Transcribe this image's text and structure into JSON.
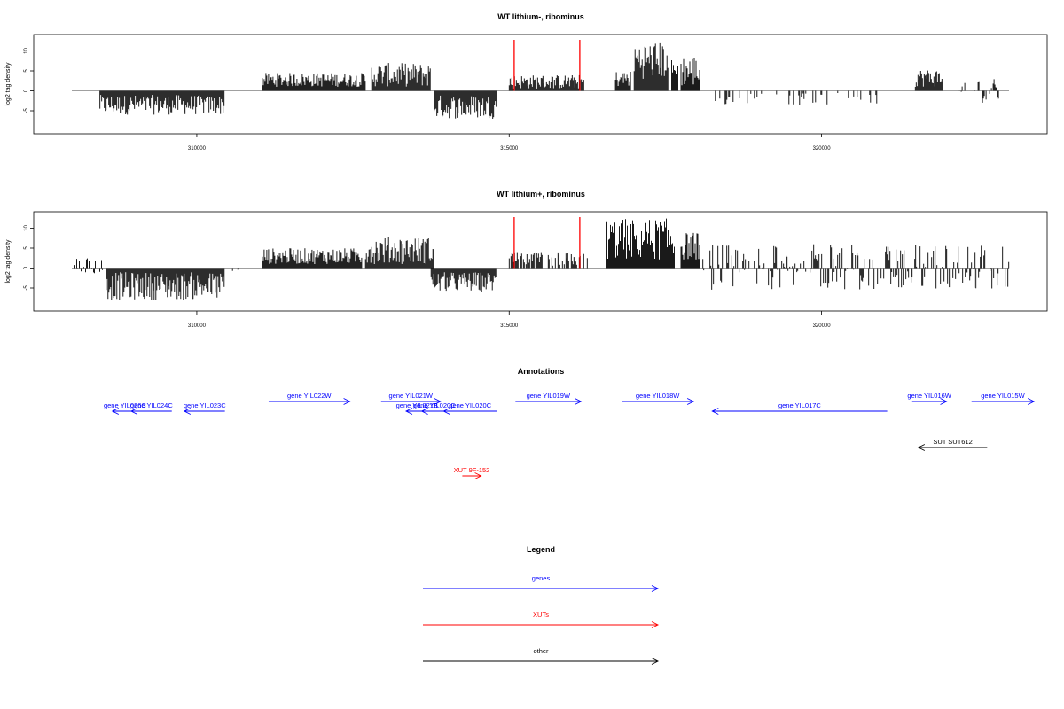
{
  "chart_data": {
    "type": "bar",
    "genomic_range": [
      308000,
      323000
    ],
    "x_ticks": [
      310000,
      315000,
      320000
    ],
    "y_ticks": [
      -5,
      0,
      5,
      10
    ],
    "ylim": [
      -9,
      13
    ],
    "highlight_positions": [
      315080,
      316130
    ],
    "panels": [
      {
        "title": "WT lithium-, ribominus",
        "ylabel": "log2 tag density",
        "regions": [
          {
            "start": 308450,
            "end": 310450,
            "min": -6.0,
            "max": -1.0
          },
          {
            "start": 311050,
            "end": 312700,
            "min": 1.0,
            "max": 4.5
          },
          {
            "start": 312800,
            "end": 313750,
            "min": 1.0,
            "max": 7.0
          },
          {
            "start": 313800,
            "end": 314800,
            "min": -7.0,
            "max": -1.0
          },
          {
            "start": 315000,
            "end": 316200,
            "min": 0.5,
            "max": 4.0
          },
          {
            "start": 316700,
            "end": 316950,
            "min": 1.0,
            "max": 5.0
          },
          {
            "start": 317000,
            "end": 317550,
            "min": 3.0,
            "max": 12.5
          },
          {
            "start": 317600,
            "end": 317700,
            "min": 2.0,
            "max": 8.0
          },
          {
            "start": 317750,
            "end": 318050,
            "min": 1.0,
            "max": 9.0
          },
          {
            "start": 318300,
            "end": 321050,
            "min": -3.5,
            "max": -0.5,
            "density": 0.15
          },
          {
            "start": 321500,
            "end": 321950,
            "min": 1.0,
            "max": 5.5
          },
          {
            "start": 322150,
            "end": 322850,
            "min": -3.0,
            "max": 3.0,
            "density": 0.4
          }
        ]
      },
      {
        "title": "WT lithium+, ribominus",
        "ylabel": "log2 tag density",
        "regions": [
          {
            "start": 308050,
            "end": 308500,
            "min": -1.5,
            "max": 2.5,
            "density": 0.4
          },
          {
            "start": 308550,
            "end": 310450,
            "min": -8.0,
            "max": -1.0
          },
          {
            "start": 310500,
            "end": 310750,
            "min": -1.0,
            "max": 1.5,
            "density": 0.3
          },
          {
            "start": 311050,
            "end": 312650,
            "min": 1.0,
            "max": 5.0
          },
          {
            "start": 312700,
            "end": 313800,
            "min": 1.0,
            "max": 8.0
          },
          {
            "start": 313750,
            "end": 314800,
            "min": -6.0,
            "max": -1.0
          },
          {
            "start": 315000,
            "end": 316250,
            "min": 0.5,
            "max": 4.0,
            "density": 0.6
          },
          {
            "start": 316550,
            "end": 317650,
            "min": 2.0,
            "max": 12.5
          },
          {
            "start": 317750,
            "end": 318050,
            "min": 2.0,
            "max": 9.0
          },
          {
            "start": 318100,
            "end": 323000,
            "min": -5.5,
            "max": 6.0,
            "density": 0.55
          }
        ]
      }
    ],
    "annotations_title": "Annotations",
    "annotations": [
      {
        "label": "gene YIL026C",
        "start": 308650,
        "end": 309050,
        "strand": "-",
        "kind": "gene",
        "row": 2
      },
      {
        "label": "gene YIL024C",
        "start": 308950,
        "end": 309600,
        "strand": "-",
        "kind": "gene",
        "row": 2
      },
      {
        "label": "gene YIL023C",
        "start": 309800,
        "end": 310450,
        "strand": "-",
        "kind": "gene",
        "row": 2
      },
      {
        "label": "gene YIL022W",
        "start": 311150,
        "end": 312450,
        "strand": "+",
        "kind": "gene",
        "row": 1
      },
      {
        "label": "gene YIL021W",
        "start": 312950,
        "end": 313900,
        "strand": "+",
        "kind": "gene",
        "row": 1
      },
      {
        "label": "gene YIL021B",
        "start": 313350,
        "end": 313700,
        "strand": "-",
        "kind": "gene",
        "row": 2
      },
      {
        "label": "gene YIL020C",
        "start": 313600,
        "end": 314000,
        "strand": "-",
        "kind": "gene",
        "row": 2
      },
      {
        "label": "gene YIL020C",
        "start": 313950,
        "end": 314800,
        "strand": "-",
        "kind": "gene",
        "row": 2
      },
      {
        "label": "gene YIL019W",
        "start": 315100,
        "end": 316150,
        "strand": "+",
        "kind": "gene",
        "row": 1
      },
      {
        "label": "gene YIL018W",
        "start": 316800,
        "end": 317950,
        "strand": "+",
        "kind": "gene",
        "row": 1
      },
      {
        "label": "gene YIL017C",
        "start": 318250,
        "end": 321050,
        "strand": "-",
        "kind": "gene",
        "row": 2
      },
      {
        "label": "gene YIL016W",
        "start": 321450,
        "end": 322000,
        "strand": "+",
        "kind": "gene",
        "row": 1
      },
      {
        "label": "gene YIL015W",
        "start": 322400,
        "end": 323400,
        "strand": "+",
        "kind": "gene",
        "row": 1
      },
      {
        "label": "SUT SUT612",
        "start": 321550,
        "end": 322650,
        "strand": "-",
        "kind": "other",
        "row": 4
      },
      {
        "label": "XUT 9F-152",
        "start": 314250,
        "end": 314550,
        "strand": "+",
        "kind": "xut",
        "row": 6
      }
    ],
    "legend_title": "Legend",
    "legend": [
      {
        "label": "genes",
        "kind": "gene"
      },
      {
        "label": "XUTs",
        "kind": "xut"
      },
      {
        "label": "other",
        "kind": "other"
      }
    ],
    "colors": {
      "gene": "#0000ff",
      "xut": "#ff0000",
      "other": "#000000",
      "highlight": "#ff0000",
      "bar": "#000000",
      "baseline": "#808080"
    }
  }
}
